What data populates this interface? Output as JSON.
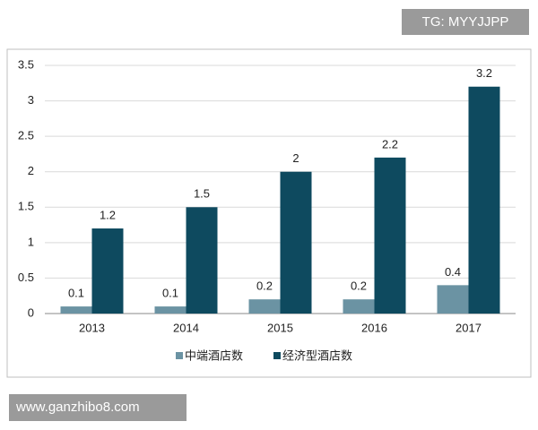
{
  "chart_data": {
    "type": "bar",
    "categories": [
      "2013",
      "2014",
      "2015",
      "2016",
      "2017"
    ],
    "series": [
      {
        "name": "中端酒店数",
        "color": "#6b93a3",
        "values": [
          0.1,
          0.1,
          0.2,
          0.2,
          0.4
        ]
      },
      {
        "name": "经济型酒店数",
        "color": "#0e4a5f",
        "values": [
          1.2,
          1.5,
          2,
          2.2,
          3.2
        ]
      }
    ],
    "ylim": [
      0,
      3.5
    ],
    "yticks": [
      0,
      0.5,
      1,
      1.5,
      2,
      2.5,
      3,
      3.5
    ],
    "grid": true,
    "legend": "bottom"
  },
  "watermarks": [
    "TG: MYYJJPP",
    "www.ganzhibo8.com"
  ]
}
